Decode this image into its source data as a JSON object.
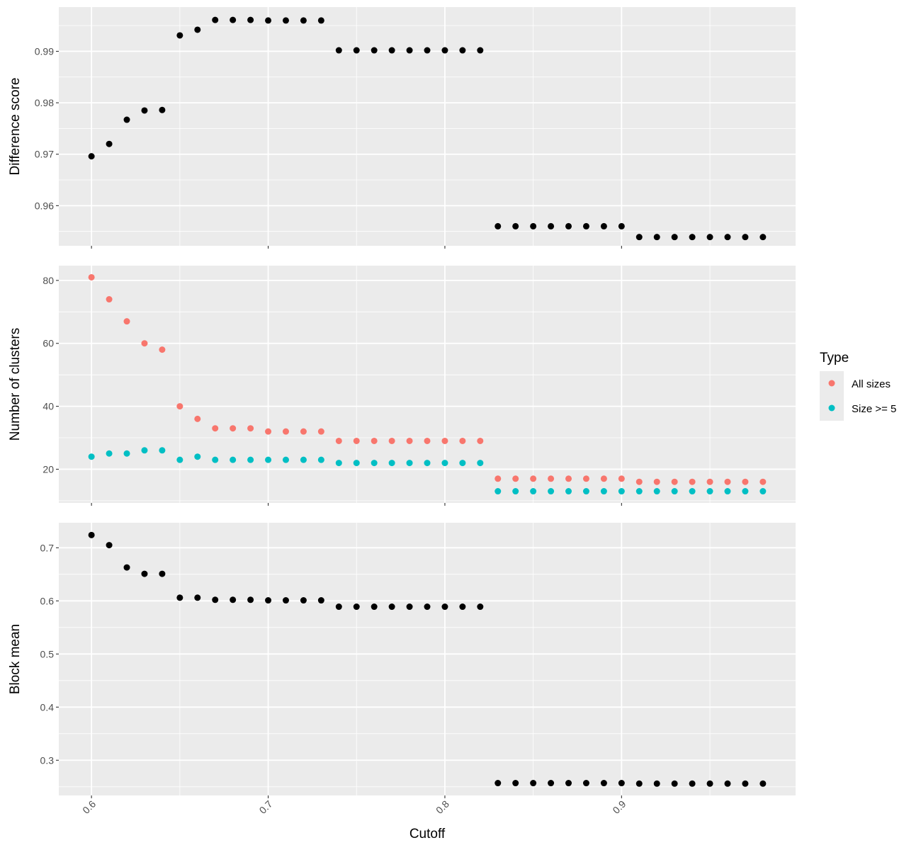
{
  "chart_data": {
    "type": "scatter",
    "x": [
      0.6,
      0.61,
      0.62,
      0.63,
      0.64,
      0.65,
      0.66,
      0.67,
      0.68,
      0.69,
      0.7,
      0.71,
      0.72,
      0.73,
      0.74,
      0.75,
      0.76,
      0.77,
      0.78,
      0.79,
      0.8,
      0.81,
      0.82,
      0.83,
      0.84,
      0.85,
      0.86,
      0.87,
      0.88,
      0.89,
      0.9,
      0.91,
      0.92,
      0.93,
      0.94,
      0.95,
      0.96,
      0.97,
      0.98
    ],
    "xlabel": "Cutoff",
    "xticks": [
      {
        "value": 0.6,
        "label": "0.6"
      },
      {
        "value": 0.7,
        "label": "0.7"
      },
      {
        "value": 0.8,
        "label": "0.8"
      },
      {
        "value": 0.9,
        "label": "0.9"
      }
    ],
    "xlim": [
      0.5815,
      0.9985
    ],
    "grid": true,
    "legend_position": "right",
    "background": "#ebebeb",
    "gridline_color": "#ffffff",
    "panels": [
      {
        "ylabel": "Difference score",
        "ylim": [
          0.9522,
          0.9986
        ],
        "yticks": [
          {
            "value": 0.96,
            "label": "0.96"
          },
          {
            "value": 0.97,
            "label": "0.97"
          },
          {
            "value": 0.98,
            "label": "0.98"
          },
          {
            "value": 0.99,
            "label": "0.99"
          }
        ],
        "series": [
          {
            "color": "#000000",
            "values": [
              0.9696,
              0.972,
              0.9767,
              0.9785,
              0.9786,
              0.9931,
              0.9942,
              0.9961,
              0.9961,
              0.9961,
              0.996,
              0.996,
              0.996,
              0.996,
              0.9902,
              0.9902,
              0.9902,
              0.9902,
              0.9902,
              0.9902,
              0.9902,
              0.9902,
              0.9902,
              0.956,
              0.956,
              0.956,
              0.956,
              0.956,
              0.956,
              0.956,
              0.956,
              0.9539,
              0.9539,
              0.9539,
              0.9539,
              0.9539,
              0.9539,
              0.9539,
              0.9539
            ]
          }
        ]
      },
      {
        "ylabel": "Number of clusters",
        "ylim": [
          9.3,
          84.7
        ],
        "yticks": [
          {
            "value": 20,
            "label": "20"
          },
          {
            "value": 40,
            "label": "40"
          },
          {
            "value": 60,
            "label": "60"
          },
          {
            "value": 80,
            "label": "80"
          }
        ],
        "series": [
          {
            "name": "All sizes",
            "color": "#f8766d",
            "values": [
              81,
              74,
              67,
              60,
              58,
              40,
              36,
              33,
              33,
              33,
              32,
              32,
              32,
              32,
              29,
              29,
              29,
              29,
              29,
              29,
              29,
              29,
              29,
              17,
              17,
              17,
              17,
              17,
              17,
              17,
              17,
              16,
              16,
              16,
              16,
              16,
              16,
              16,
              16
            ]
          },
          {
            "name": "Size >= 5",
            "color": "#00bfc4",
            "values": [
              24,
              25,
              25,
              26,
              26,
              23,
              24,
              23,
              23,
              23,
              23,
              23,
              23,
              23,
              22,
              22,
              22,
              22,
              22,
              22,
              22,
              22,
              22,
              13,
              13,
              13,
              13,
              13,
              13,
              13,
              13,
              13,
              13,
              13,
              13,
              13,
              13,
              13,
              13
            ]
          }
        ]
      },
      {
        "ylabel": "Block mean",
        "ylim": [
          0.2337,
          0.7471
        ],
        "yticks": [
          {
            "value": 0.3,
            "label": "0.3"
          },
          {
            "value": 0.4,
            "label": "0.4"
          },
          {
            "value": 0.5,
            "label": "0.5"
          },
          {
            "value": 0.6,
            "label": "0.6"
          },
          {
            "value": 0.7,
            "label": "0.7"
          }
        ],
        "series": [
          {
            "color": "#000000",
            "values": [
              0.724,
              0.705,
              0.663,
              0.651,
              0.651,
              0.606,
              0.606,
              0.602,
              0.602,
              0.602,
              0.601,
              0.601,
              0.601,
              0.601,
              0.589,
              0.589,
              0.589,
              0.589,
              0.589,
              0.589,
              0.589,
              0.589,
              0.589,
              0.257,
              0.257,
              0.257,
              0.257,
              0.257,
              0.257,
              0.257,
              0.257,
              0.256,
              0.256,
              0.256,
              0.256,
              0.256,
              0.256,
              0.256,
              0.256
            ]
          }
        ]
      }
    ],
    "legend": {
      "title": "Type",
      "items": [
        {
          "label": "All sizes",
          "color": "#f8766d"
        },
        {
          "label": "Size >= 5",
          "color": "#00bfc4"
        }
      ]
    }
  }
}
